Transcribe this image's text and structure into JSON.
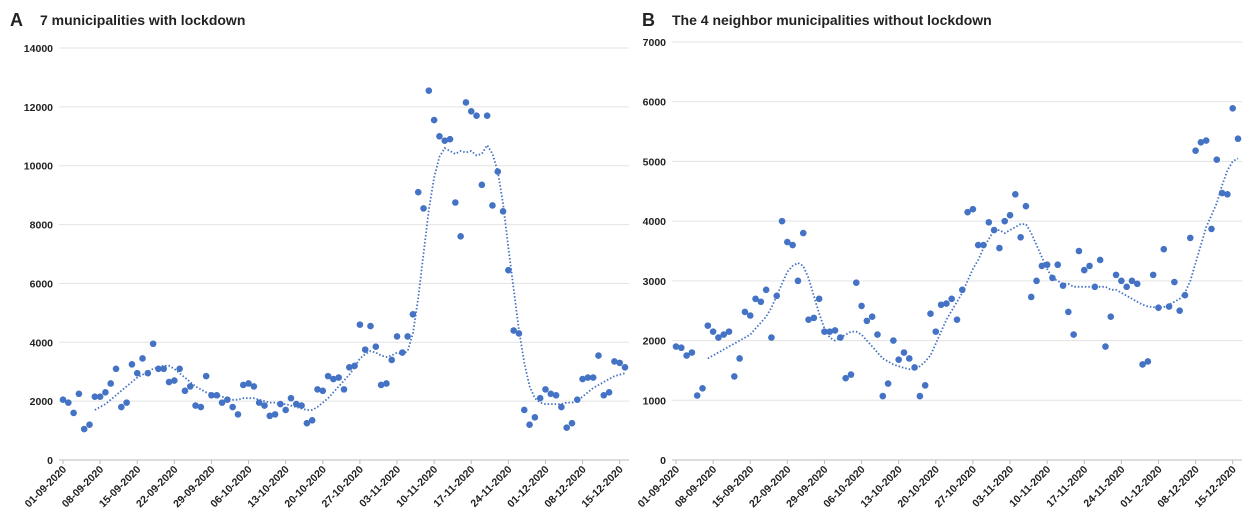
{
  "chart_data": [
    {
      "type": "scatter",
      "panel": "A",
      "title": "7 municipalities with lockdown",
      "categories": [
        "01-09-2020",
        null,
        null,
        null,
        null,
        null,
        null,
        "08-09-2020",
        null,
        null,
        null,
        null,
        null,
        null,
        "15-09-2020",
        null,
        null,
        null,
        null,
        null,
        null,
        "22-09-2020",
        null,
        null,
        null,
        null,
        null,
        null,
        "29-09-2020",
        null,
        null,
        null,
        null,
        null,
        null,
        "06-10-2020",
        null,
        null,
        null,
        null,
        null,
        null,
        "13-10-2020",
        null,
        null,
        null,
        null,
        null,
        null,
        "20-10-2020",
        null,
        null,
        null,
        null,
        null,
        null,
        "27-10-2020",
        null,
        null,
        null,
        null,
        null,
        null,
        "03-11-2020",
        null,
        null,
        null,
        null,
        null,
        null,
        "10-11-2020",
        null,
        null,
        null,
        null,
        null,
        null,
        "17-11-2020",
        null,
        null,
        null,
        null,
        null,
        null,
        "24-11-2020",
        null,
        null,
        null,
        null,
        null,
        null,
        "01-12-2020",
        null,
        null,
        null,
        null,
        null,
        null,
        "08-12-2020",
        null,
        null,
        null,
        null,
        null,
        null,
        "15-12-2020",
        null
      ],
      "series": [
        {
          "color": "#4472c4",
          "values": [
            2050,
            1950,
            1600,
            2250,
            1050,
            1200,
            2150,
            2150,
            2300,
            2600,
            3100,
            1800,
            1950,
            3250,
            2950,
            3450,
            2950,
            3950,
            3100,
            3100,
            2650,
            2700,
            3100,
            2350,
            2500,
            1850,
            1800,
            2850,
            2200,
            2200,
            1950,
            2050,
            1800,
            1550,
            2550,
            2600,
            2500,
            1950,
            1850,
            1500,
            1550,
            1900,
            1700,
            2100,
            1900,
            1850,
            1250,
            1350,
            2400,
            2350,
            2850,
            2750,
            2800,
            2400,
            3150,
            3200,
            4600,
            3750,
            4550,
            3850,
            2550,
            2600,
            3400,
            4200,
            3650,
            4200,
            4950,
            9100,
            8550,
            12550,
            11550,
            11000,
            10850,
            10900,
            8750,
            7600,
            12150,
            11850,
            11700,
            9350,
            11700,
            8650,
            9800,
            8450,
            6450,
            4400,
            4300,
            1700,
            1200,
            1450,
            2100,
            2400,
            2250,
            2200,
            1800,
            1100,
            1250,
            2050,
            2750,
            2800,
            2800,
            3550,
            2200,
            2300,
            3350,
            3300,
            3150
          ]
        },
        {
          "color": "#4472c4",
          "style": "dotted",
          "values": [
            null,
            null,
            null,
            null,
            null,
            null,
            1700,
            1800,
            1900,
            2050,
            2200,
            2350,
            2500,
            2650,
            2800,
            2900,
            3000,
            3100,
            3150,
            3200,
            3200,
            3100,
            2950,
            2800,
            2650,
            2500,
            2400,
            2300,
            2250,
            2200,
            2150,
            2100,
            2050,
            2050,
            2100,
            2100,
            2100,
            2050,
            2000,
            1950,
            1950,
            1900,
            1900,
            1850,
            1800,
            1750,
            1700,
            1700,
            1800,
            1950,
            2100,
            2300,
            2500,
            2700,
            2900,
            3150,
            3450,
            3600,
            3700,
            3650,
            3550,
            3500,
            3550,
            3650,
            3600,
            3700,
            4300,
            5500,
            7000,
            8500,
            9600,
            10300,
            10600,
            10500,
            10400,
            10500,
            10450,
            10500,
            10350,
            10400,
            10700,
            10400,
            9800,
            8700,
            7200,
            5800,
            4400,
            3300,
            2500,
            2100,
            1950,
            1900,
            1900,
            1900,
            1900,
            1950,
            1950,
            2000,
            2150,
            2300,
            2450,
            2550,
            2650,
            2750,
            2850,
            2900,
            2950
          ]
        }
      ],
      "ylim": [
        0,
        14000
      ],
      "yticks": [
        0,
        2000,
        4000,
        6000,
        8000,
        10000,
        12000,
        14000
      ],
      "grid": true
    },
    {
      "type": "scatter",
      "panel": "B",
      "title": "The 4 neighbor municipalities without lockdown",
      "categories": [
        "01-09-2020",
        null,
        null,
        null,
        null,
        null,
        null,
        "08-09-2020",
        null,
        null,
        null,
        null,
        null,
        null,
        "15-09-2020",
        null,
        null,
        null,
        null,
        null,
        null,
        "22-09-2020",
        null,
        null,
        null,
        null,
        null,
        null,
        "29-09-2020",
        null,
        null,
        null,
        null,
        null,
        null,
        "06-10-2020",
        null,
        null,
        null,
        null,
        null,
        null,
        "13-10-2020",
        null,
        null,
        null,
        null,
        null,
        null,
        "20-10-2020",
        null,
        null,
        null,
        null,
        null,
        null,
        "27-10-2020",
        null,
        null,
        null,
        null,
        null,
        null,
        "03-11-2020",
        null,
        null,
        null,
        null,
        null,
        null,
        "10-11-2020",
        null,
        null,
        null,
        null,
        null,
        null,
        "17-11-2020",
        null,
        null,
        null,
        null,
        null,
        null,
        "24-11-2020",
        null,
        null,
        null,
        null,
        null,
        null,
        "01-12-2020",
        null,
        null,
        null,
        null,
        null,
        null,
        "08-12-2020",
        null,
        null,
        null,
        null,
        null,
        null,
        "15-12-2020",
        null
      ],
      "series": [
        {
          "color": "#4472c4",
          "values": [
            1900,
            1880,
            1750,
            1800,
            1080,
            1200,
            2250,
            2150,
            2050,
            2100,
            2150,
            1400,
            1700,
            2480,
            2420,
            2700,
            2650,
            2850,
            2050,
            2750,
            4000,
            3650,
            3600,
            3000,
            3800,
            2350,
            2380,
            2700,
            2150,
            2150,
            2170,
            2050,
            1370,
            1430,
            2970,
            2580,
            2330,
            2400,
            2100,
            1070,
            1280,
            2000,
            1680,
            1800,
            1700,
            1550,
            1070,
            1250,
            2450,
            2150,
            2600,
            2620,
            2700,
            2350,
            2850,
            4150,
            4200,
            3600,
            3600,
            3980,
            3850,
            3550,
            4000,
            4100,
            4450,
            3730,
            4250,
            2730,
            3000,
            3250,
            3270,
            3050,
            3270,
            2920,
            2480,
            2100,
            3500,
            3180,
            3250,
            2900,
            3350,
            1900,
            2400,
            3100,
            3000,
            2900,
            3000,
            2950,
            1600,
            1650,
            3100,
            2550,
            3530,
            2570,
            2980,
            2500,
            2760,
            3720,
            5180,
            5320,
            5350,
            3870,
            5030,
            4470,
            4450,
            5890,
            5380
          ]
        },
        {
          "color": "#4472c4",
          "style": "dotted",
          "values": [
            null,
            null,
            null,
            null,
            null,
            null,
            1700,
            1750,
            1800,
            1850,
            1900,
            1950,
            2000,
            2050,
            2100,
            2200,
            2300,
            2400,
            2550,
            2750,
            2950,
            3150,
            3250,
            3300,
            3250,
            3050,
            2750,
            2450,
            2200,
            2050,
            2000,
            2050,
            2100,
            2150,
            2150,
            2100,
            2000,
            1900,
            1800,
            1700,
            1650,
            1600,
            1570,
            1540,
            1520,
            1530,
            1570,
            1650,
            1750,
            1950,
            2150,
            2350,
            2500,
            2650,
            2800,
            3000,
            3200,
            3350,
            3550,
            3700,
            3850,
            3850,
            3800,
            3850,
            3900,
            3950,
            3950,
            3800,
            3600,
            3400,
            3200,
            3050,
            3000,
            2950,
            2950,
            2900,
            2900,
            2900,
            2900,
            2900,
            2900,
            2900,
            2850,
            2850,
            2800,
            2750,
            2700,
            2650,
            2600,
            2570,
            2560,
            2550,
            2560,
            2600,
            2650,
            2700,
            2800,
            3000,
            3300,
            3600,
            3900,
            4100,
            4300,
            4600,
            4850,
            5000,
            5050
          ]
        }
      ],
      "ylim": [
        0,
        7000
      ],
      "yticks": [
        0,
        1000,
        2000,
        3000,
        4000,
        5000,
        6000,
        7000
      ],
      "grid": true
    }
  ]
}
